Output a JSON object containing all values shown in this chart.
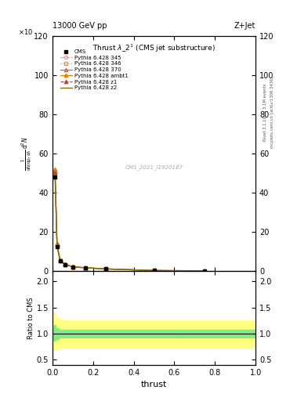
{
  "title_main": "13000 GeV pp",
  "title_right": "Z+Jet",
  "plot_title": "Thrust $\\lambda\\_2^1$ (CMS jet substructure)",
  "xlabel": "thrust",
  "ylabel_ratio": "Ratio to CMS",
  "watermark": "CMS_2021_I1920187",
  "rivet_label": "Rivet 3.1.10, ≥ 3.1M events",
  "arxiv_label": "mcplots.cern.ch [arXiv:1306.3436]",
  "ylim_main": [
    0,
    120
  ],
  "ylim_ratio": [
    0.4,
    2.2
  ],
  "yticks_main": [
    0,
    20,
    40,
    60,
    80,
    100,
    120
  ],
  "yticks_ratio": [
    0.5,
    1.0,
    1.5,
    2.0
  ],
  "cms_x": [
    0.013,
    0.023,
    0.038,
    0.063,
    0.1,
    0.163,
    0.263,
    0.5,
    0.75
  ],
  "cms_y": [
    48.0,
    12.5,
    5.0,
    3.2,
    2.1,
    1.5,
    1.0,
    0.2,
    0.05
  ],
  "pythia_x": [
    0.013,
    0.023,
    0.038,
    0.063,
    0.1,
    0.163,
    0.263,
    0.5,
    0.75
  ],
  "pythia_345_y": [
    49.5,
    13.0,
    5.2,
    3.3,
    2.1,
    1.6,
    1.05,
    0.22,
    0.06
  ],
  "pythia_346_y": [
    50.0,
    13.2,
    5.3,
    3.35,
    2.12,
    1.62,
    1.06,
    0.23,
    0.065
  ],
  "pythia_370_y": [
    51.0,
    13.5,
    5.4,
    3.4,
    2.15,
    1.65,
    1.08,
    0.24,
    0.07
  ],
  "pythia_ambt1_y": [
    52.0,
    13.8,
    5.5,
    3.5,
    2.2,
    1.7,
    1.1,
    0.25,
    0.08
  ],
  "pythia_z1_y": [
    50.5,
    13.1,
    5.25,
    3.32,
    2.11,
    1.61,
    1.05,
    0.22,
    0.06
  ],
  "pythia_z2_y": [
    49.8,
    13.0,
    5.22,
    3.31,
    2.1,
    1.6,
    1.04,
    0.21,
    0.058
  ],
  "ratio_x_edges": [
    0.0,
    0.006,
    0.01,
    0.018,
    0.03,
    0.05,
    0.082,
    0.13,
    0.21,
    0.38,
    0.63,
    1.0
  ],
  "ratio_yellow_lo": [
    0.82,
    0.7,
    0.68,
    0.7,
    0.72,
    0.73,
    0.73,
    0.73,
    0.73,
    0.73,
    0.73
  ],
  "ratio_yellow_hi": [
    1.18,
    1.3,
    1.4,
    1.3,
    1.27,
    1.25,
    1.25,
    1.25,
    1.25,
    1.25,
    1.25
  ],
  "ratio_green_lo": [
    0.93,
    0.88,
    0.86,
    0.9,
    0.92,
    0.92,
    0.92,
    0.92,
    0.92,
    0.92,
    0.92
  ],
  "ratio_green_hi": [
    1.07,
    1.12,
    1.16,
    1.1,
    1.08,
    1.08,
    1.08,
    1.08,
    1.08,
    1.08,
    1.08
  ],
  "color_345": "#e8a0a0",
  "color_346": "#c8a060",
  "color_370": "#c06060",
  "color_ambt1": "#e08000",
  "color_z1": "#c04040",
  "color_z2": "#807000",
  "background": "#ffffff"
}
